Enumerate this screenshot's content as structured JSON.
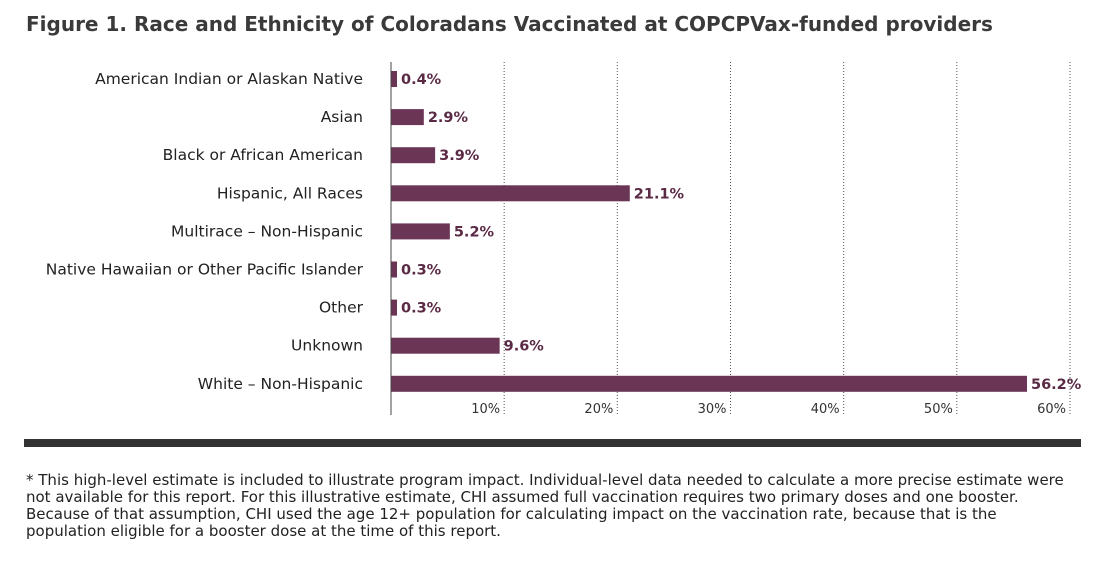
{
  "title": "Figure 1. Race and Ethnicity of Coloradans Vaccinated at COPCPVax-funded providers",
  "chart_data": {
    "type": "bar",
    "orientation": "horizontal",
    "categories": [
      "American Indian or Alaskan Native",
      "Asian",
      "Black or African American",
      "Hispanic, All Races",
      "Multirace – Non-Hispanic",
      "Native Hawaiian or Other Pacific Islander",
      "Other",
      "Unknown",
      "White – Non-Hispanic"
    ],
    "values": [
      0.4,
      2.9,
      3.9,
      21.1,
      5.2,
      0.3,
      0.3,
      9.6,
      56.2
    ],
    "value_labels": [
      "0.4%",
      "2.9%",
      "3.9%",
      "21.1%",
      "5.2%",
      "0.3%",
      "0.3%",
      "9.6%",
      "56.2%"
    ],
    "xticks": [
      10,
      20,
      30,
      40,
      50,
      60
    ],
    "xtick_labels": [
      "10%",
      "20%",
      "30%",
      "40%",
      "50%",
      "60%"
    ],
    "xlim": [
      0,
      60
    ],
    "grid": true,
    "bar_color": "#6b3556",
    "label_color": "#5a2a45"
  },
  "footnote": "* This high-level estimate is included to illustrate program impact. Individual-level data needed to calculate a more precise estimate were not available for this report. For this illustrative estimate, CHI assumed full vaccination requires two primary doses and one booster. Because of that assumption, CHI used the age 12+ population for calculating impact on the vaccination rate, because that is the population eligible for a booster dose at the time of this report."
}
